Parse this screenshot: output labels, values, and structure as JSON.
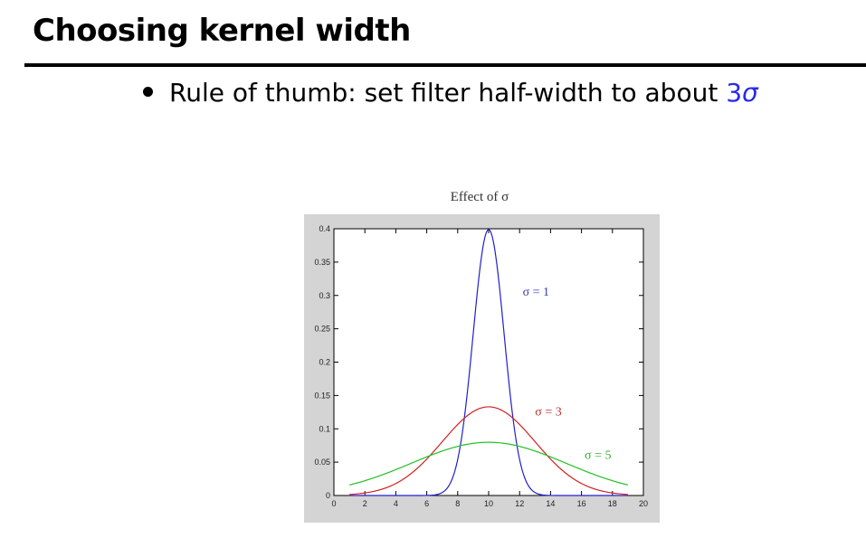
{
  "slide": {
    "title": "Choosing kernel width",
    "bullet_text": "Rule of thumb: set filter half-width to about ",
    "bullet_number": "3",
    "bullet_symbol": "σ"
  },
  "colors": {
    "sigma_highlight": "#2a2ae6",
    "figure_background": "#d4d4d4",
    "axes_background": "#ffffff"
  },
  "chart_data": {
    "type": "line",
    "title": "Effect of σ",
    "xlabel": "",
    "ylabel": "",
    "xlim": [
      0,
      20
    ],
    "ylim": [
      0,
      0.4
    ],
    "grid": false,
    "x_ticks": [
      0,
      2,
      4,
      6,
      8,
      10,
      12,
      14,
      16,
      18,
      20
    ],
    "y_ticks": [
      0,
      0.05,
      0.1,
      0.15,
      0.2,
      0.25,
      0.3,
      0.35,
      0.4
    ],
    "y_tick_labels": [
      "0",
      "0.05",
      "0.1",
      "0.15",
      "0.2",
      "0.25",
      "0.3",
      "0.35",
      "0.4"
    ],
    "x": [
      1,
      1.5,
      2,
      2.5,
      3,
      3.5,
      4,
      4.5,
      5,
      5.5,
      6,
      6.5,
      7,
      7.5,
      8,
      8.5,
      9,
      9.5,
      10,
      10.5,
      11,
      11.5,
      12,
      12.5,
      13,
      13.5,
      14,
      14.5,
      15,
      15.5,
      16,
      16.5,
      17,
      17.5,
      18,
      18.5,
      19
    ],
    "series": [
      {
        "name": "σ = 1",
        "color": "#2020d0",
        "values": [
          0,
          0,
          0,
          0,
          0,
          0,
          0,
          0,
          0,
          0,
          0,
          0,
          0.0044,
          0.0175,
          0.054,
          0.1295,
          0.242,
          0.352,
          0.399,
          0.352,
          0.242,
          0.1295,
          0.054,
          0.0175,
          0.0044,
          0,
          0,
          0,
          0,
          0,
          0,
          0,
          0,
          0,
          0,
          0,
          0
        ]
      },
      {
        "name": "σ = 3",
        "color": "#d02020",
        "values": [
          0.0015,
          0.0027,
          0.0044,
          0.0069,
          0.0109,
          0.0165,
          0.0242,
          0.0343,
          0.0467,
          0.0614,
          0.0781,
          0.0961,
          0.1141,
          0.1313,
          0.1457,
          0.1558,
          0.1613,
          0.1649,
          0.133,
          0.1649,
          0.1613,
          0.1558,
          0.1457,
          0.1313,
          0.1141,
          0.0961,
          0.0781,
          0.0614,
          0.0467,
          0.0343,
          0.0242,
          0.0165,
          0.0109,
          0.0069,
          0.0044,
          0.0027,
          0.0015
        ]
      },
      {
        "name": "σ = 5",
        "color": "#20c020",
        "values": [
          0.0222,
          0.0264,
          0.0312,
          0.0363,
          0.0416,
          0.0473,
          0.0532,
          0.0591,
          0.065,
          0.0705,
          0.0756,
          0.0798,
          0.0783,
          0.0791,
          0.0797,
          0.0799,
          0.08,
          0.0799,
          0.0798,
          0.0799,
          0.08,
          0.0799,
          0.0797,
          0.0791,
          0.0783,
          0.0798,
          0.0756,
          0.0705,
          0.065,
          0.0591,
          0.0532,
          0.0473,
          0.0416,
          0.0363,
          0.0312,
          0.0264,
          0.0222
        ]
      }
    ],
    "annotations": [
      {
        "text": "σ = 1",
        "x": 12.2,
        "y": 0.3,
        "color": "#3a3ab0"
      },
      {
        "text": "σ = 3",
        "x": 13.0,
        "y": 0.12,
        "color": "#c03030"
      },
      {
        "text": "σ = 5",
        "x": 16.2,
        "y": 0.055,
        "color": "#30b030"
      }
    ]
  }
}
